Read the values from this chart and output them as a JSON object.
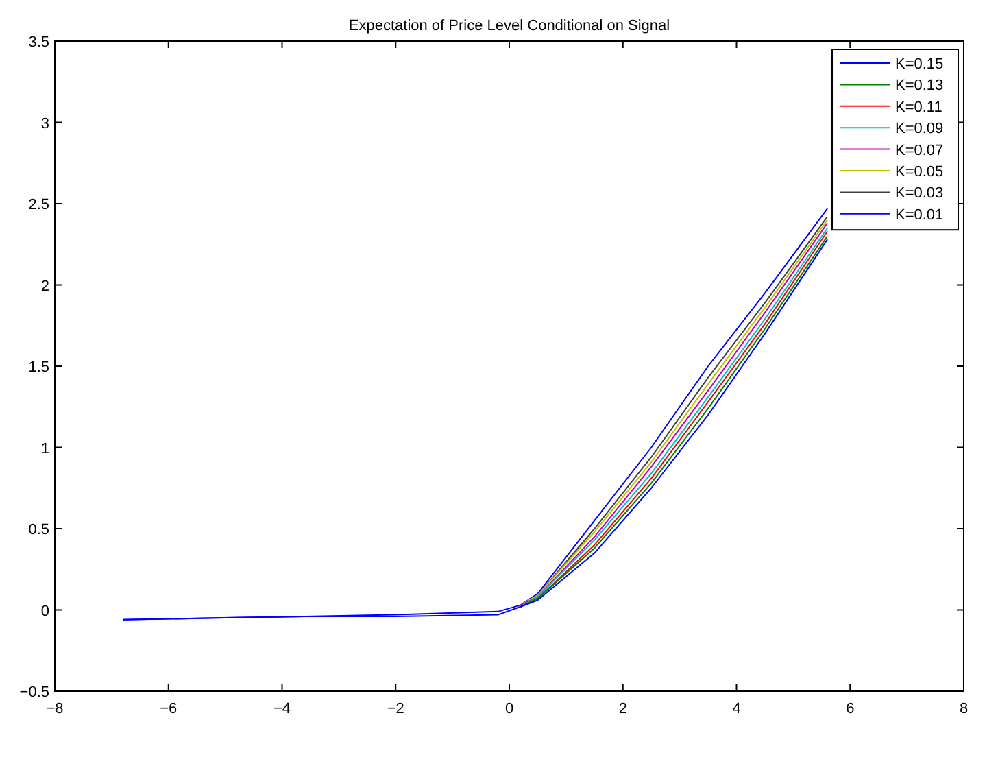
{
  "chart_data": {
    "type": "line",
    "title": "Expectation of Price Level Conditional on Signal",
    "x": [
      -6.8,
      -5.2,
      -3.6,
      -2.0,
      -0.2,
      0.2,
      0.5,
      1.5,
      2.5,
      3.5,
      4.5,
      5.6
    ],
    "series": [
      {
        "name": "K=0.15",
        "color": "#0000ff",
        "values": [
          -0.06,
          -0.05,
          -0.04,
          -0.04,
          -0.03,
          0.02,
          0.06,
          0.35,
          0.75,
          1.2,
          1.7,
          2.28
        ]
      },
      {
        "name": "K=0.13",
        "color": "#008000",
        "values": [
          null,
          null,
          null,
          null,
          null,
          0.02,
          0.07,
          0.38,
          0.78,
          1.24,
          1.73,
          2.3
        ]
      },
      {
        "name": "K=0.11",
        "color": "#ff0000",
        "values": [
          null,
          null,
          null,
          null,
          null,
          0.02,
          0.07,
          0.4,
          0.81,
          1.28,
          1.76,
          2.33
        ]
      },
      {
        "name": "K=0.09",
        "color": "#00bfbf",
        "values": [
          null,
          null,
          null,
          null,
          null,
          0.02,
          0.08,
          0.43,
          0.84,
          1.31,
          1.79,
          2.35
        ]
      },
      {
        "name": "K=0.07",
        "color": "#bf00bf",
        "values": [
          null,
          null,
          null,
          null,
          null,
          0.03,
          0.08,
          0.45,
          0.88,
          1.35,
          1.83,
          2.38
        ]
      },
      {
        "name": "K=0.05",
        "color": "#bfbf00",
        "values": [
          null,
          null,
          null,
          null,
          null,
          0.03,
          0.09,
          0.48,
          0.91,
          1.39,
          1.86,
          2.4
        ]
      },
      {
        "name": "K=0.03",
        "color": "#404040",
        "values": [
          null,
          null,
          null,
          null,
          null,
          0.03,
          0.09,
          0.5,
          0.94,
          1.43,
          1.89,
          2.42
        ]
      },
      {
        "name": "K=0.01",
        "color": "#0000ff",
        "values": [
          -0.06,
          -0.05,
          -0.04,
          -0.03,
          -0.01,
          0.03,
          0.1,
          0.55,
          1.0,
          1.5,
          1.95,
          2.47
        ]
      }
    ],
    "xlim": [
      -8,
      8
    ],
    "xticks": [
      -8,
      -6,
      -4,
      -2,
      0,
      2,
      4,
      6,
      8
    ],
    "ylim": [
      -0.5,
      3.5
    ],
    "yticks": [
      -0.5,
      0,
      0.5,
      1,
      1.5,
      2,
      2.5,
      3,
      3.5
    ],
    "legend": "top right",
    "marker": "none",
    "line_style": "solid",
    "grid": false
  }
}
